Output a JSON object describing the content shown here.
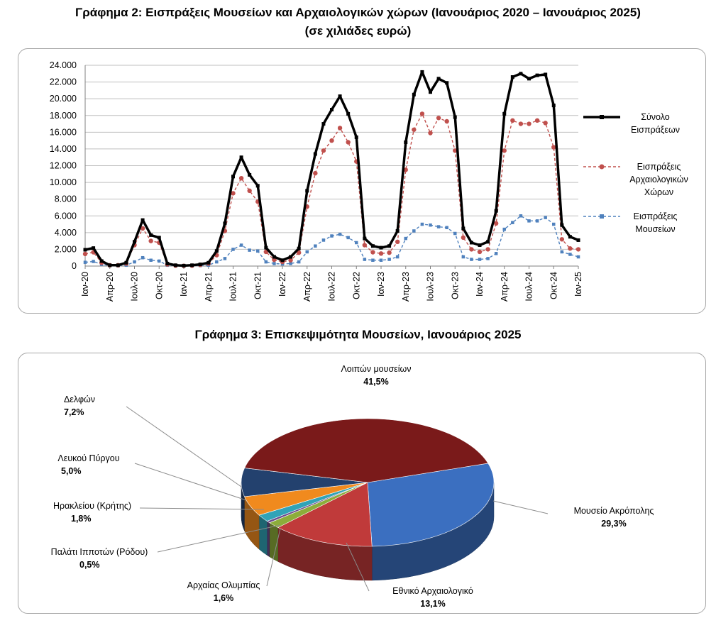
{
  "titles": {
    "chart2_line1": "Γράφημα 2: Εισπράξεις Μουσείων και Αρχαιολογικών χώρων (Ιανουάριος 2020 – Ιανουάριος 2025)",
    "chart2_line2": "(σε χιλιάδες ευρώ)",
    "chart3": "Γράφημα 3: Επισκεψιμότητα Μουσείων, Ιανουάριος 2025"
  },
  "colors": {
    "total": "#000000",
    "sites": "#c0504d",
    "museums": "#4f81bd",
    "grid": "#bfbfbf",
    "panel_border": "#a6a6a6"
  },
  "chart_data": [
    {
      "type": "line",
      "title": "Γράφημα 2: Εισπράξεις Μουσείων και Αρχαιολογικών χώρων (Ιανουάριος 2020 – Ιανουάριος 2025)",
      "subtitle": "(σε χιλιάδες ευρώ)",
      "ylim": [
        0,
        24000
      ],
      "yticks": [
        "0",
        "2.000",
        "4.000",
        "6.000",
        "8.000",
        "10.000",
        "12.000",
        "14.000",
        "16.000",
        "18.000",
        "20.000",
        "22.000",
        "24.000"
      ],
      "xtick_labels": [
        "Ιαν-20",
        "Απρ-20",
        "Ιουλ-20",
        "Οκτ-20",
        "Ιαν-21",
        "Απρ-21",
        "Ιουλ-21",
        "Οκτ-21",
        "Ιαν-22",
        "Απρ-22",
        "Ιουλ-22",
        "Οκτ-22",
        "Ιαν-23",
        "Απρ-23",
        "Ιουλ-23",
        "Οκτ-23",
        "Ιαν-24",
        "Απρ-24",
        "Ιουλ-24",
        "Οκτ-24",
        "Ιαν-25"
      ],
      "legend_position": "right",
      "series": [
        {
          "name": "Σύνολο Εισπράξεων",
          "values": [
            1950,
            2150,
            600,
            100,
            100,
            400,
            2900,
            5500,
            3700,
            3400,
            300,
            100,
            50,
            100,
            200,
            400,
            1800,
            5100,
            10700,
            13000,
            10900,
            9600,
            2200,
            1100,
            700,
            1100,
            2100,
            9000,
            13400,
            17000,
            18700,
            20300,
            18200,
            15400,
            3300,
            2400,
            2200,
            2400,
            4200,
            14800,
            20500,
            23200,
            20800,
            22400,
            21900,
            17800,
            4500,
            2800,
            2500,
            2900,
            6600,
            18200,
            22600,
            23000,
            22400,
            22800,
            22900,
            19200,
            4900,
            3500,
            3100
          ],
          "labels": [
            "Σύνολο",
            "Εισπράξεων"
          ]
        },
        {
          "name": "Εισπράξεις Αρχαιολογικών Χώρων",
          "values": [
            1450,
            1650,
            400,
            100,
            100,
            300,
            2500,
            4500,
            3000,
            2800,
            200,
            50,
            30,
            50,
            150,
            300,
            1300,
            4200,
            8700,
            10500,
            9000,
            7700,
            1700,
            750,
            500,
            700,
            1600,
            7100,
            11100,
            13800,
            15000,
            16500,
            14800,
            12500,
            2500,
            1650,
            1500,
            1600,
            2900,
            11500,
            16300,
            18200,
            15900,
            17700,
            17300,
            13800,
            3400,
            2000,
            1700,
            2000,
            5100,
            13800,
            17400,
            17000,
            17000,
            17400,
            17100,
            14200,
            3200,
            2100,
            2000
          ],
          "labels": [
            "Εισπράξεις",
            "Αρχαιολογικών",
            "Χώρων"
          ]
        },
        {
          "name": "Εισπράξεις Μουσείων",
          "values": [
            450,
            550,
            200,
            50,
            50,
            100,
            500,
            1000,
            700,
            600,
            100,
            40,
            20,
            40,
            60,
            100,
            500,
            900,
            2000,
            2500,
            1900,
            1800,
            500,
            300,
            250,
            300,
            500,
            1700,
            2400,
            3100,
            3600,
            3800,
            3400,
            2800,
            800,
            700,
            700,
            800,
            1100,
            3300,
            4200,
            5000,
            4900,
            4700,
            4600,
            3900,
            1100,
            800,
            800,
            900,
            1500,
            4400,
            5200,
            6000,
            5400,
            5400,
            5800,
            5000,
            1700,
            1400,
            1100
          ],
          "labels": [
            "Εισπράξεις",
            "Μουσείων"
          ]
        }
      ]
    },
    {
      "type": "pie",
      "title": "Γράφημα 3: Επισκεψιμότητα Μουσείων, Ιανουάριος 2025",
      "slices": [
        {
          "name": "Μουσείο Ακρόπολης",
          "value": 29.3,
          "label": "29,3%",
          "color": "#3b6fc0"
        },
        {
          "name": "Εθνικό Αρχαιολογικό",
          "value": 13.1,
          "label": "13,1%",
          "color": "#c03a3a"
        },
        {
          "name": "Αρχαίας Ολυμπίας",
          "value": 1.6,
          "label": "1,6%",
          "color": "#8cad3a"
        },
        {
          "name": "Παλάτι Ιπποτών (Ρόδου)",
          "value": 0.5,
          "label": "0,5%",
          "color": "#6a4a8c"
        },
        {
          "name": "Ηρακλείου (Κρήτης)",
          "value": 1.8,
          "label": "1,8%",
          "color": "#31a3b7"
        },
        {
          "name": "Λευκού Πύργου",
          "value": 5.0,
          "label": "5,0%",
          "color": "#f08a1e"
        },
        {
          "name": "Δελφών",
          "value": 7.2,
          "label": "7,2%",
          "color": "#23416e"
        },
        {
          "name": "Λοιπών μουσείων",
          "value": 41.5,
          "label": "41,5%",
          "color": "#7a1a1a"
        }
      ]
    }
  ]
}
